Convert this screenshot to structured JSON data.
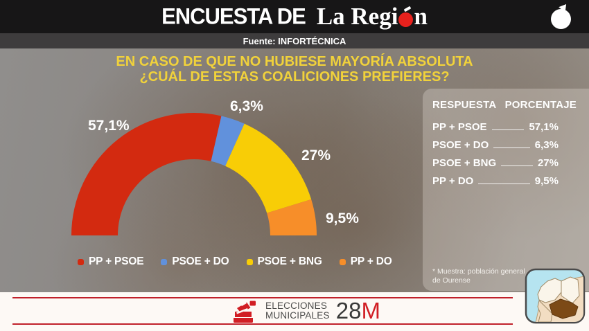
{
  "header": {
    "show_title": "ENCUESTA DE",
    "brand_part1": "La Regi",
    "brand_part2": "n",
    "source": "Fuente: INFORTÉCNICA"
  },
  "question": {
    "line1": "EN CASO DE QUE NO HUBIESE MAYORÍA ABSOLUTA",
    "line2": "¿CUÁL DE ESTAS COALICIONES PREFIERES?"
  },
  "chart_data": {
    "type": "donut",
    "variant": "semicircle-gauge",
    "title": "EN CASO DE QUE NO HUBIESE MAYORÍA ABSOLUTA ¿CUÁL DE ESTAS COALICIONES PREFIERES?",
    "unit": "percent",
    "total_degrees": 180,
    "legend_position": "bottom",
    "series": [
      {
        "name": "PP + PSOE",
        "value": 57.1,
        "display": "57,1%",
        "color": "#d32a10"
      },
      {
        "name": "PSOE + DO",
        "value": 6.3,
        "display": "6,3%",
        "color": "#6191dc"
      },
      {
        "name": "PSOE + BNG",
        "value": 27,
        "display": "27%",
        "color": "#f8cd06"
      },
      {
        "name": "PP + DO",
        "value": 9.5,
        "display": "9,5%",
        "color": "#f78e29"
      }
    ]
  },
  "table": {
    "header_response": "RESPUESTA",
    "header_percentage": "PORCENTAJE",
    "rows": [
      {
        "label": "PP + PSOE",
        "value": "57,1%"
      },
      {
        "label": "PSOE + DO",
        "value": "6,3%"
      },
      {
        "label": "PSOE + BNG",
        "value": "27%"
      },
      {
        "label": "PP + DO",
        "value": "9,5%"
      }
    ],
    "footnote": "* Muestra: población general de Ourense"
  },
  "footer": {
    "event_line1": "ELECCIONES",
    "event_line2": "MUNICIPALES",
    "date_number": "28",
    "date_letter": "M"
  },
  "colors": {
    "accent_red": "#c0202a",
    "brand_red": "#e8211d",
    "title_yellow": "#f1d23b",
    "topbar_black": "#171617",
    "sourcebar_gray": "#3e3c3d",
    "ourense_brown": "#7c4a16"
  },
  "icons": {
    "brand_mark": "o-circumflex-logo",
    "ballot": "ballot-box-icon",
    "region_map": "galicia-map-ourense-icon"
  }
}
